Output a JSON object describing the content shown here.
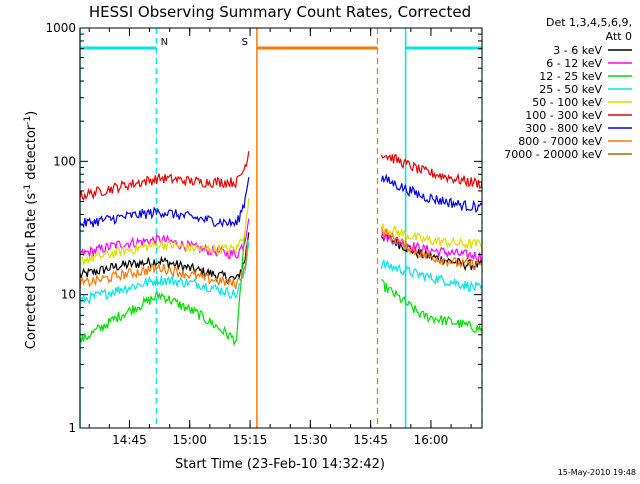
{
  "chart_data": {
    "type": "line",
    "title": "HESSI Observing Summary Count Rates, Corrected",
    "xlabel": "Start Time (23-Feb-10 14:32:42)",
    "ylabel_main": "Corrected Count Rate (s",
    "ylabel_sup1": "-1",
    "ylabel_mid": " detector",
    "ylabel_sup2": "-1",
    "ylabel_end": ")",
    "yscale": "log",
    "ylim": [
      1,
      1000
    ],
    "xlim_minutes": [
      0,
      100
    ],
    "xticks": [
      {
        "minute": 12.3,
        "label": "14:45"
      },
      {
        "minute": 27.3,
        "label": "15:00"
      },
      {
        "minute": 42.3,
        "label": "15:15"
      },
      {
        "minute": 57.3,
        "label": "15:30"
      },
      {
        "minute": 72.3,
        "label": "15:45"
      },
      {
        "minute": 87.3,
        "label": "16:00"
      }
    ],
    "yticks": [
      {
        "value": 1,
        "label": "1"
      },
      {
        "value": 10,
        "label": "10"
      },
      {
        "value": 100,
        "label": "100"
      },
      {
        "value": 1000,
        "label": "1000"
      }
    ],
    "legend_header_1": "Det 1,3,4,5,6,9,",
    "legend_header_2": "Att 0",
    "series": [
      {
        "name": "3 - 6 keV",
        "color": "#000000",
        "seg1": [
          [
            0,
            14
          ],
          [
            10,
            16.5
          ],
          [
            20,
            18
          ],
          [
            30,
            15
          ],
          [
            39,
            13
          ],
          [
            41,
            18
          ],
          [
            42,
            30
          ]
        ],
        "seg2": [
          [
            75,
            28
          ],
          [
            85,
            20
          ],
          [
            95,
            17
          ],
          [
            100,
            16.5
          ]
        ]
      },
      {
        "name": "6 - 12 keV",
        "color": "#ff00ff",
        "seg1": [
          [
            0,
            20
          ],
          [
            10,
            24
          ],
          [
            20,
            26
          ],
          [
            30,
            22
          ],
          [
            39,
            20
          ],
          [
            41,
            25
          ],
          [
            42,
            40
          ]
        ],
        "seg2": [
          [
            75,
            28
          ],
          [
            85,
            22
          ],
          [
            95,
            20
          ],
          [
            100,
            19.5
          ]
        ]
      },
      {
        "name": "12 - 25 keV",
        "color": "#00dd00",
        "seg1": [
          [
            0,
            4.5
          ],
          [
            10,
            7
          ],
          [
            20,
            10
          ],
          [
            30,
            7
          ],
          [
            39,
            4.5
          ],
          [
            40,
            12
          ],
          [
            41,
            30
          ]
        ],
        "seg2": [
          [
            75,
            12
          ],
          [
            85,
            7
          ],
          [
            95,
            6
          ],
          [
            100,
            5.5
          ]
        ]
      },
      {
        "name": "25 - 50 keV",
        "color": "#00e5e5",
        "seg1": [
          [
            0,
            9
          ],
          [
            10,
            11
          ],
          [
            20,
            13
          ],
          [
            30,
            12
          ],
          [
            39,
            10
          ],
          [
            41,
            15
          ],
          [
            42,
            25
          ]
        ],
        "seg2": [
          [
            75,
            17
          ],
          [
            85,
            14
          ],
          [
            95,
            12
          ],
          [
            100,
            11
          ]
        ]
      },
      {
        "name": "50 - 100 keV",
        "color": "#dddd00",
        "seg1": [
          [
            0,
            18
          ],
          [
            10,
            21
          ],
          [
            20,
            24
          ],
          [
            30,
            22
          ],
          [
            39,
            22
          ],
          [
            41,
            30
          ],
          [
            42,
            50
          ]
        ],
        "seg2": [
          [
            75,
            32
          ],
          [
            85,
            26
          ],
          [
            95,
            24
          ],
          [
            100,
            24
          ]
        ]
      },
      {
        "name": "100 - 300 keV",
        "color": "#ee0000",
        "seg1": [
          [
            0,
            55
          ],
          [
            10,
            65
          ],
          [
            20,
            75
          ],
          [
            30,
            70
          ],
          [
            39,
            70
          ],
          [
            41,
            90
          ],
          [
            42,
            120
          ]
        ],
        "seg2": [
          [
            75,
            115
          ],
          [
            85,
            85
          ],
          [
            95,
            72
          ],
          [
            100,
            68
          ]
        ]
      },
      {
        "name": "300 - 800 keV",
        "color": "#0000ee",
        "seg1": [
          [
            0,
            34
          ],
          [
            10,
            38
          ],
          [
            20,
            42
          ],
          [
            30,
            37
          ],
          [
            39,
            34
          ],
          [
            41,
            50
          ],
          [
            42,
            80
          ]
        ],
        "seg2": [
          [
            75,
            75
          ],
          [
            85,
            55
          ],
          [
            95,
            47
          ],
          [
            100,
            45
          ]
        ]
      },
      {
        "name": "800 - 7000 keV",
        "color": "#ff7700",
        "seg1": [
          [
            0,
            12
          ],
          [
            10,
            14
          ],
          [
            20,
            16
          ],
          [
            30,
            13.5
          ],
          [
            39,
            12
          ],
          [
            41,
            16
          ],
          [
            42,
            28
          ]
        ],
        "seg2": [
          [
            75,
            30
          ],
          [
            85,
            20
          ],
          [
            95,
            17
          ],
          [
            100,
            17
          ]
        ]
      },
      {
        "name": "7000 - 20000 keV",
        "color": "#aa6600",
        "seg1": [],
        "seg2": []
      }
    ],
    "markers": [
      {
        "letter": "N",
        "color": "#00e5e5",
        "bar_start": 0,
        "bar_end": 19,
        "dash_at": 19,
        "solid_at": 0,
        "letter_at": 21
      },
      {
        "letter": "S",
        "color": "#ff7700",
        "bar_start": 44,
        "bar_end": 74,
        "dash_at": 74,
        "solid_at": 44,
        "letter_at": 41
      },
      {
        "letter": "",
        "color": "#00e5e5",
        "bar_start": 81,
        "bar_end": 100,
        "dash_at": 100,
        "solid_at": 81,
        "letter_at": 0
      }
    ],
    "grid": false,
    "legend_placement": "right"
  },
  "footer": {
    "timestamp": "15-May-2010 19:48"
  }
}
